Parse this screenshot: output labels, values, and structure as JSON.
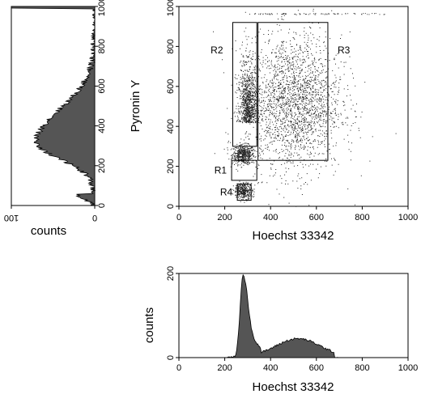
{
  "chart_data": [
    {
      "id": "scatter",
      "type": "scatter",
      "xlabel": "Hoechst 33342",
      "ylabel": "Pyronin Y",
      "xlim": [
        0,
        1000
      ],
      "ylim": [
        0,
        1000
      ],
      "xticks": [
        "0",
        "200",
        "400",
        "600",
        "800",
        "1000"
      ],
      "yticks": [
        "0",
        "200",
        "400",
        "600",
        "800",
        "1000"
      ],
      "populations": [
        {
          "region": "R1",
          "x_center": 280,
          "y_center": 260,
          "spread": 30,
          "count": 500
        },
        {
          "region": "R2",
          "x_center": 300,
          "y_center": 420,
          "spread": 55,
          "count": 900
        },
        {
          "region": "R3",
          "x_center": 500,
          "y_center": 520,
          "spread": 130,
          "count": 2200
        },
        {
          "region": "R4",
          "x_center": 280,
          "y_center": 80,
          "spread": 25,
          "count": 350
        }
      ],
      "regions": [
        {
          "label": "R1",
          "x": [
            230,
            340
          ],
          "y": [
            130,
            230
          ]
        },
        {
          "label": "R2",
          "x": [
            235,
            340
          ],
          "y": [
            300,
            920
          ]
        },
        {
          "label": "R3",
          "x": [
            345,
            650
          ],
          "y": [
            230,
            920
          ]
        },
        {
          "label": "R4",
          "x": [
            255,
            315
          ],
          "y": [
            30,
            110
          ]
        }
      ]
    },
    {
      "id": "pyronin-histogram",
      "type": "area",
      "orientation": "horizontal, counts increasing to the left",
      "xlabel": "counts",
      "xlim": [
        0,
        100
      ],
      "ylim": [
        0,
        1000
      ],
      "xticks": [
        "0",
        "100"
      ],
      "yticks": [
        "0",
        "200",
        "400",
        "600",
        "800",
        "1000"
      ],
      "peak_y": 320,
      "peak_count": 70
    },
    {
      "id": "hoechst-histogram",
      "type": "area",
      "xlabel": "Hoechst 33342",
      "ylabel": "counts",
      "xlim": [
        0,
        1000
      ],
      "ylim": [
        0,
        200
      ],
      "xticks": [
        "0",
        "200",
        "400",
        "600",
        "800",
        "1000"
      ],
      "yticks": [
        "0",
        "200"
      ],
      "peak_x": 280,
      "peak_count": 195,
      "shoulder_x": 520,
      "shoulder_count": 45
    }
  ]
}
